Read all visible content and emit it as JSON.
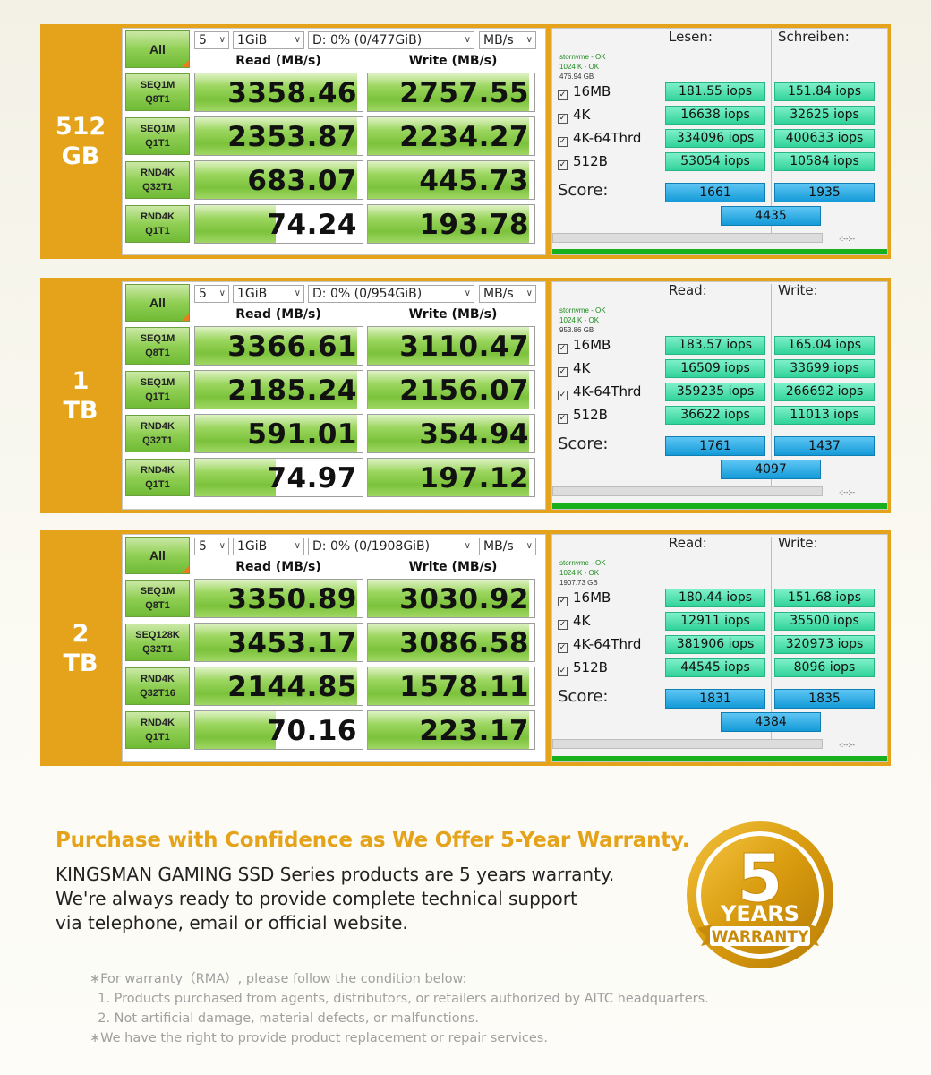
{
  "colors": {
    "panel": "#e4a31a",
    "accent_green": "#7cc23b",
    "iops_teal": "#31d39a",
    "score_blue": "#149ad8"
  },
  "panels": [
    {
      "capacity": [
        "512",
        "GB"
      ],
      "cdm": {
        "count": "5",
        "size": "1GiB",
        "drive": "D: 0% (0/477GiB)",
        "unit": "MB/s",
        "all_label": "All",
        "read_header": "Read (MB/s)",
        "write_header": "Write (MB/s)",
        "rows": [
          {
            "l1": "SEQ1M",
            "l2": "Q8T1",
            "read": "3358.46",
            "write": "2757.55"
          },
          {
            "l1": "SEQ1M",
            "l2": "Q1T1",
            "read": "2353.87",
            "write": "2234.27"
          },
          {
            "l1": "RND4K",
            "l2": "Q32T1",
            "read": "683.07",
            "write": "445.73"
          },
          {
            "l1": "RND4K",
            "l2": "Q1T1",
            "read": "74.24",
            "write": "193.78"
          }
        ],
        "fills": [
          [
            0.97,
            0.97
          ],
          [
            0.97,
            0.97
          ],
          [
            0.97,
            0.97
          ],
          [
            0.48,
            0.97
          ]
        ]
      },
      "as": {
        "drive": "stornvme - OK",
        "align": "1024 K - OK",
        "size": "476.94 GB",
        "read_hdr": "Lesen:",
        "write_hdr": "Schreiben:",
        "rows": [
          {
            "name": "16MB",
            "read": "181.55 iops",
            "write": "151.84 iops"
          },
          {
            "name": "4K",
            "read": "16638 iops",
            "write": "32625 iops"
          },
          {
            "name": "4K-64Thrd",
            "read": "334096 iops",
            "write": "400633 iops"
          },
          {
            "name": "512B",
            "read": "53054 iops",
            "write": "10584 iops"
          }
        ],
        "score_label": "Score:",
        "score_read": "1661",
        "score_write": "1935",
        "score_total": "4435",
        "time": "-:--:--"
      }
    },
    {
      "capacity": [
        "1",
        "TB"
      ],
      "cdm": {
        "count": "5",
        "size": "1GiB",
        "drive": "D: 0% (0/954GiB)",
        "unit": "MB/s",
        "all_label": "All",
        "read_header": "Read (MB/s)",
        "write_header": "Write (MB/s)",
        "rows": [
          {
            "l1": "SEQ1M",
            "l2": "Q8T1",
            "read": "3366.61",
            "write": "3110.47"
          },
          {
            "l1": "SEQ1M",
            "l2": "Q1T1",
            "read": "2185.24",
            "write": "2156.07"
          },
          {
            "l1": "RND4K",
            "l2": "Q32T1",
            "read": "591.01",
            "write": "354.94"
          },
          {
            "l1": "RND4K",
            "l2": "Q1T1",
            "read": "74.97",
            "write": "197.12"
          }
        ],
        "fills": [
          [
            0.97,
            0.97
          ],
          [
            0.97,
            0.97
          ],
          [
            0.97,
            0.97
          ],
          [
            0.48,
            0.97
          ]
        ]
      },
      "as": {
        "drive": "stornvme - OK",
        "align": "1024 K - OK",
        "size": "953.86 GB",
        "read_hdr": "Read:",
        "write_hdr": "Write:",
        "rows": [
          {
            "name": "16MB",
            "read": "183.57 iops",
            "write": "165.04 iops"
          },
          {
            "name": "4K",
            "read": "16509 iops",
            "write": "33699 iops"
          },
          {
            "name": "4K-64Thrd",
            "read": "359235 iops",
            "write": "266692 iops"
          },
          {
            "name": "512B",
            "read": "36622 iops",
            "write": "11013 iops"
          }
        ],
        "score_label": "Score:",
        "score_read": "1761",
        "score_write": "1437",
        "score_total": "4097",
        "time": "-:--:--"
      }
    },
    {
      "capacity": [
        "2",
        "TB"
      ],
      "cdm": {
        "count": "5",
        "size": "1GiB",
        "drive": "D: 0% (0/1908GiB)",
        "unit": "MB/s",
        "all_label": "All",
        "read_header": "Read (MB/s)",
        "write_header": "Write (MB/s)",
        "rows": [
          {
            "l1": "SEQ1M",
            "l2": "Q8T1",
            "read": "3350.89",
            "write": "3030.92"
          },
          {
            "l1": "SEQ128K",
            "l2": "Q32T1",
            "read": "3453.17",
            "write": "3086.58"
          },
          {
            "l1": "RND4K",
            "l2": "Q32T16",
            "read": "2144.85",
            "write": "1578.11"
          },
          {
            "l1": "RND4K",
            "l2": "Q1T1",
            "read": "70.16",
            "write": "223.17"
          }
        ],
        "fills": [
          [
            0.97,
            0.97
          ],
          [
            0.97,
            0.97
          ],
          [
            0.97,
            0.97
          ],
          [
            0.48,
            0.97
          ]
        ]
      },
      "as": {
        "drive": "stornvme - OK",
        "align": "1024 K - OK",
        "size": "1907.73 GB",
        "read_hdr": "Read:",
        "write_hdr": "Write:",
        "rows": [
          {
            "name": "16MB",
            "read": "180.44 iops",
            "write": "151.68 iops"
          },
          {
            "name": "4K",
            "read": "12911 iops",
            "write": "35500 iops"
          },
          {
            "name": "4K-64Thrd",
            "read": "381906 iops",
            "write": "320973 iops"
          },
          {
            "name": "512B",
            "read": "44545 iops",
            "write": "8096 iops"
          }
        ],
        "score_label": "Score:",
        "score_read": "1831",
        "score_write": "1835",
        "score_total": "4384",
        "time": "-:--:--"
      }
    }
  ],
  "warranty": {
    "title": "Purchase with Confidence as We Offer 5-Year Warranty.",
    "desc": [
      "KINGSMAN GAMING SSD Series products are 5 years warranty.",
      "We're always ready to provide complete technical support",
      "via telephone, email or official website."
    ],
    "notes": [
      "∗For warranty（RMA）, please follow the condition below:",
      "  1. Products purchased from agents, distributors, or retailers authorized by AITC headquarters.",
      "  2. Not artificial damage, material defects, or malfunctions.",
      "∗We have the right to provide product replacement or repair services."
    ],
    "badge": {
      "number": "5",
      "line1": "YEARS",
      "line2": "WARRANTY"
    }
  }
}
